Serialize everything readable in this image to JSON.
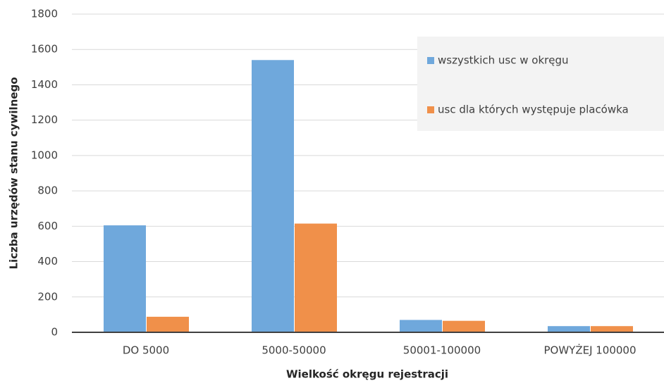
{
  "chart_data": {
    "type": "bar",
    "x_label": "Wielkość okręgu rejestracji",
    "y_label": "Liczba urzędów stanu cywilnego",
    "categories": [
      "DO 5000",
      "5000-50000",
      "50001-100000",
      "POWYŻEJ 100000"
    ],
    "series": [
      {
        "name": "wszystkich usc w okręgu",
        "color": "#6fa8dc",
        "values": [
          605,
          1540,
          70,
          35
        ]
      },
      {
        "name": "usc dla których występuje placówka",
        "color": "#f0904a",
        "values": [
          88,
          615,
          65,
          35
        ]
      }
    ],
    "ylim": [
      0,
      1800
    ],
    "yticks": [
      0,
      200,
      400,
      600,
      800,
      1000,
      1200,
      1400,
      1600,
      1800
    ],
    "grid": true,
    "legend": "upper right"
  }
}
